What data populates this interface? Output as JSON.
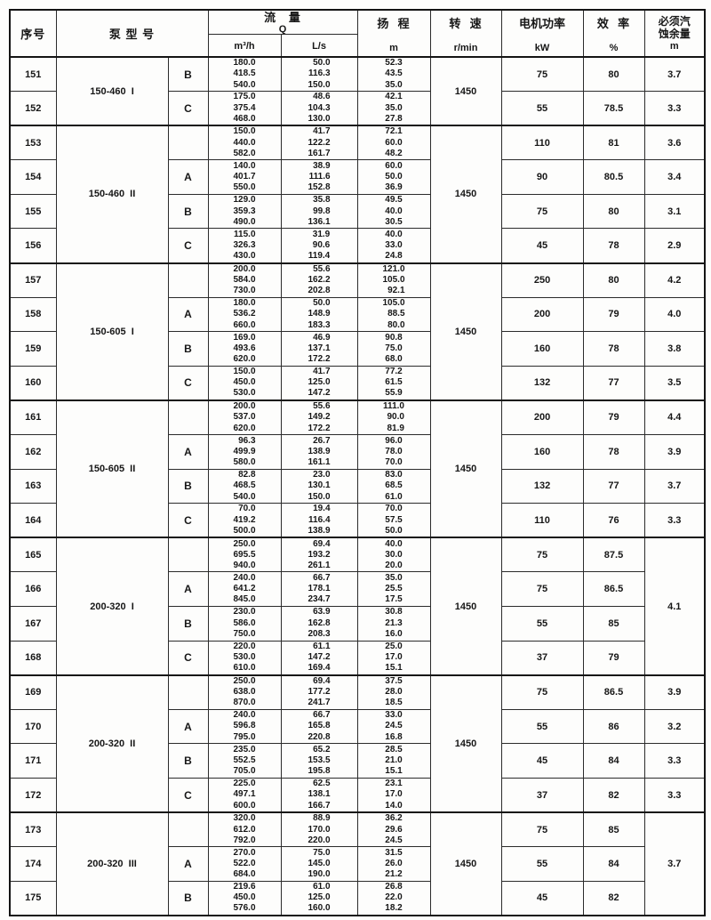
{
  "document": {
    "header": {
      "serial": "序号",
      "model": "泵 型 号",
      "flow_title": "流   量",
      "flow_symbol": "Q",
      "flow_unit_m3h": "m³/h",
      "flow_unit_ls": "L/s",
      "head_title": "扬  程",
      "head_unit": "m",
      "speed_title": "转  速",
      "speed_unit": "r/min",
      "power_title": "电机功率",
      "power_unit": "kW",
      "eff_title": "效  率",
      "eff_unit": "%",
      "npsh_title": "必须汽\n蚀余量",
      "npsh_unit": "m"
    },
    "groups": [
      {
        "model": "150-460  I",
        "speed": "1450",
        "rows": [
          {
            "no": "151",
            "variant": "B",
            "m3h": [
              "180.0",
              "418.5",
              "540.0"
            ],
            "ls": [
              "50.0",
              "116.3",
              "150.0"
            ],
            "head": [
              "52.3",
              "43.5",
              "35.0"
            ],
            "power": "75",
            "eff": "80",
            "npsh": "3.7"
          },
          {
            "no": "152",
            "variant": "C",
            "m3h": [
              "175.0",
              "375.4",
              "468.0"
            ],
            "ls": [
              "48.6",
              "104.3",
              "130.0"
            ],
            "head": [
              "42.1",
              "35.0",
              "27.8"
            ],
            "power": "55",
            "eff": "78.5",
            "npsh": "3.3"
          }
        ]
      },
      {
        "model": "150-460  II",
        "speed": "1450",
        "rows": [
          {
            "no": "153",
            "variant": "",
            "m3h": [
              "150.0",
              "440.0",
              "582.0"
            ],
            "ls": [
              "41.7",
              "122.2",
              "161.7"
            ],
            "head": [
              "72.1",
              "60.0",
              "48.2"
            ],
            "power": "110",
            "eff": "81",
            "npsh": "3.6"
          },
          {
            "no": "154",
            "variant": "A",
            "m3h": [
              "140.0",
              "401.7",
              "550.0"
            ],
            "ls": [
              "38.9",
              "111.6",
              "152.8"
            ],
            "head": [
              "60.0",
              "50.0",
              "36.9"
            ],
            "power": "90",
            "eff": "80.5",
            "npsh": "3.4"
          },
          {
            "no": "155",
            "variant": "B",
            "m3h": [
              "129.0",
              "359.3",
              "490.0"
            ],
            "ls": [
              "35.8",
              "99.8",
              "136.1"
            ],
            "head": [
              "49.5",
              "40.0",
              "30.5"
            ],
            "power": "75",
            "eff": "80",
            "npsh": "3.1"
          },
          {
            "no": "156",
            "variant": "C",
            "m3h": [
              "115.0",
              "326.3",
              "430.0"
            ],
            "ls": [
              "31.9",
              "90.6",
              "119.4"
            ],
            "head": [
              "40.0",
              "33.0",
              "24.8"
            ],
            "power": "45",
            "eff": "78",
            "npsh": "2.9"
          }
        ]
      },
      {
        "model": "150-605  I",
        "speed": "1450",
        "rows": [
          {
            "no": "157",
            "variant": "",
            "m3h": [
              "200.0",
              "584.0",
              "730.0"
            ],
            "ls": [
              "55.6",
              "162.2",
              "202.8"
            ],
            "head": [
              "121.0",
              "105.0",
              "92.1"
            ],
            "power": "250",
            "eff": "80",
            "npsh": "4.2"
          },
          {
            "no": "158",
            "variant": "A",
            "m3h": [
              "180.0",
              "536.2",
              "660.0"
            ],
            "ls": [
              "50.0",
              "148.9",
              "183.3"
            ],
            "head": [
              "105.0",
              "88.5",
              "80.0"
            ],
            "power": "200",
            "eff": "79",
            "npsh": "4.0"
          },
          {
            "no": "159",
            "variant": "B",
            "m3h": [
              "169.0",
              "493.6",
              "620.0"
            ],
            "ls": [
              "46.9",
              "137.1",
              "172.2"
            ],
            "head": [
              "90.8",
              "75.0",
              "68.0"
            ],
            "power": "160",
            "eff": "78",
            "npsh": "3.8"
          },
          {
            "no": "160",
            "variant": "C",
            "m3h": [
              "150.0",
              "450.0",
              "530.0"
            ],
            "ls": [
              "41.7",
              "125.0",
              "147.2"
            ],
            "head": [
              "77.2",
              "61.5",
              "55.9"
            ],
            "power": "132",
            "eff": "77",
            "npsh": "3.5"
          }
        ]
      },
      {
        "model": "150-605  II",
        "speed": "1450",
        "rows": [
          {
            "no": "161",
            "variant": "",
            "m3h": [
              "200.0",
              "537.0",
              "620.0"
            ],
            "ls": [
              "55.6",
              "149.2",
              "172.2"
            ],
            "head": [
              "111.0",
              "90.0",
              "81.9"
            ],
            "power": "200",
            "eff": "79",
            "npsh": "4.4"
          },
          {
            "no": "162",
            "variant": "A",
            "m3h": [
              "96.3",
              "499.9",
              "580.0"
            ],
            "ls": [
              "26.7",
              "138.9",
              "161.1"
            ],
            "head": [
              "96.0",
              "78.0",
              "70.0"
            ],
            "power": "160",
            "eff": "78",
            "npsh": "3.9"
          },
          {
            "no": "163",
            "variant": "B",
            "m3h": [
              "82.8",
              "468.5",
              "540.0"
            ],
            "ls": [
              "23.0",
              "130.1",
              "150.0"
            ],
            "head": [
              "83.0",
              "68.5",
              "61.0"
            ],
            "power": "132",
            "eff": "77",
            "npsh": "3.7"
          },
          {
            "no": "164",
            "variant": "C",
            "m3h": [
              "70.0",
              "419.2",
              "500.0"
            ],
            "ls": [
              "19.4",
              "116.4",
              "138.9"
            ],
            "head": [
              "70.0",
              "57.5",
              "50.0"
            ],
            "power": "110",
            "eff": "76",
            "npsh": "3.3"
          }
        ]
      },
      {
        "model": "200-320  I",
        "speed": "1450",
        "npsh": "4.1",
        "rows": [
          {
            "no": "165",
            "variant": "",
            "m3h": [
              "250.0",
              "695.5",
              "940.0"
            ],
            "ls": [
              "69.4",
              "193.2",
              "261.1"
            ],
            "head": [
              "40.0",
              "30.0",
              "20.0"
            ],
            "power": "75",
            "eff": "87.5"
          },
          {
            "no": "166",
            "variant": "A",
            "m3h": [
              "240.0",
              "641.2",
              "845.0"
            ],
            "ls": [
              "66.7",
              "178.1",
              "234.7"
            ],
            "head": [
              "35.0",
              "25.5",
              "17.5"
            ],
            "power": "75",
            "eff": "86.5"
          },
          {
            "no": "167",
            "variant": "B",
            "m3h": [
              "230.0",
              "586.0",
              "750.0"
            ],
            "ls": [
              "63.9",
              "162.8",
              "208.3"
            ],
            "head": [
              "30.8",
              "21.3",
              "16.0"
            ],
            "power": "55",
            "eff": "85"
          },
          {
            "no": "168",
            "variant": "C",
            "m3h": [
              "220.0",
              "530.0",
              "610.0"
            ],
            "ls": [
              "61.1",
              "147.2",
              "169.4"
            ],
            "head": [
              "25.0",
              "17.0",
              "15.1"
            ],
            "power": "37",
            "eff": "79"
          }
        ]
      },
      {
        "model": "200-320  II",
        "speed": "1450",
        "rows": [
          {
            "no": "169",
            "variant": "",
            "m3h": [
              "250.0",
              "638.0",
              "870.0"
            ],
            "ls": [
              "69.4",
              "177.2",
              "241.7"
            ],
            "head": [
              "37.5",
              "28.0",
              "18.5"
            ],
            "power": "75",
            "eff": "86.5",
            "npsh": "3.9"
          },
          {
            "no": "170",
            "variant": "A",
            "m3h": [
              "240.0",
              "596.8",
              "795.0"
            ],
            "ls": [
              "66.7",
              "165.8",
              "220.8"
            ],
            "head": [
              "33.0",
              "24.5",
              "16.8"
            ],
            "power": "55",
            "eff": "86",
            "npsh": "3.2"
          },
          {
            "no": "171",
            "variant": "B",
            "m3h": [
              "235.0",
              "552.5",
              "705.0"
            ],
            "ls": [
              "65.2",
              "153.5",
              "195.8"
            ],
            "head": [
              "28.5",
              "21.0",
              "15.1"
            ],
            "power": "45",
            "eff": "84",
            "npsh": "3.3"
          },
          {
            "no": "172",
            "variant": "C",
            "m3h": [
              "225.0",
              "497.1",
              "600.0"
            ],
            "ls": [
              "62.5",
              "138.1",
              "166.7"
            ],
            "head": [
              "23.1",
              "17.0",
              "14.0"
            ],
            "power": "37",
            "eff": "82",
            "npsh": "3.3"
          }
        ]
      },
      {
        "model": "200-320  III",
        "speed": "1450",
        "npsh": "3.7",
        "rows": [
          {
            "no": "173",
            "variant": "",
            "m3h": [
              "320.0",
              "612.0",
              "792.0"
            ],
            "ls": [
              "88.9",
              "170.0",
              "220.0"
            ],
            "head": [
              "36.2",
              "29.6",
              "24.5"
            ],
            "power": "75",
            "eff": "85"
          },
          {
            "no": "174",
            "variant": "A",
            "m3h": [
              "270.0",
              "522.0",
              "684.0"
            ],
            "ls": [
              "75.0",
              "145.0",
              "190.0"
            ],
            "head": [
              "31.5",
              "26.0",
              "21.2"
            ],
            "power": "55",
            "eff": "84"
          },
          {
            "no": "175",
            "variant": "B",
            "m3h": [
              "219.6",
              "450.0",
              "576.0"
            ],
            "ls": [
              "61.0",
              "125.0",
              "160.0"
            ],
            "head": [
              "26.8",
              "22.0",
              "18.2"
            ],
            "power": "45",
            "eff": "82"
          }
        ]
      }
    ]
  }
}
